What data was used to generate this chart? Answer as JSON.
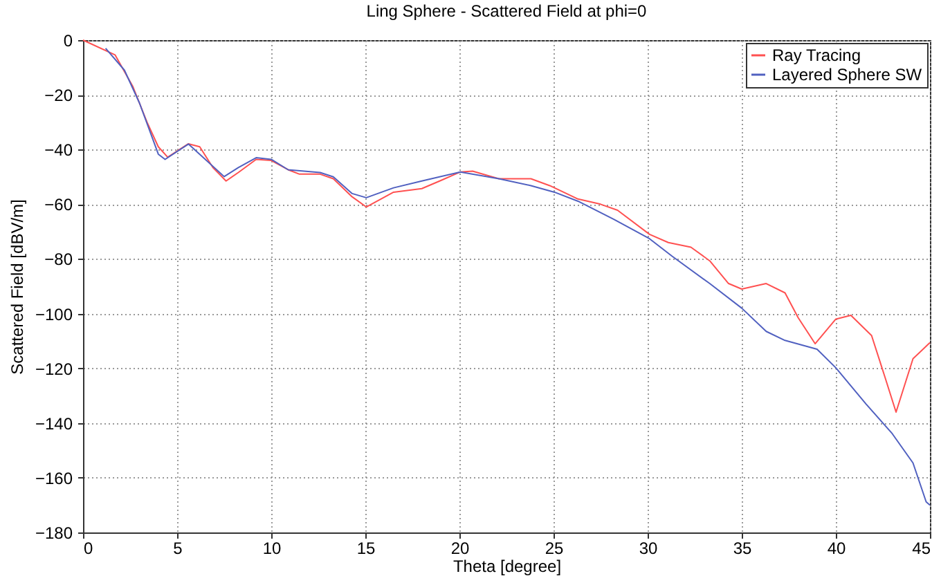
{
  "chart_data": {
    "type": "line",
    "title": "Ling Sphere - Scattered Field at phi=0",
    "xlabel": "Theta [degree]",
    "ylabel": "Scattered Field [dBV/m]",
    "xlim": [
      0,
      45
    ],
    "ylim": [
      -180,
      0
    ],
    "xticks": [
      0,
      5,
      10,
      15,
      20,
      25,
      30,
      35,
      40,
      45
    ],
    "yticks": [
      -180,
      -160,
      -140,
      -120,
      -100,
      -80,
      -60,
      -40,
      -20,
      0
    ],
    "grid": true,
    "legend": "top right",
    "marker": "none",
    "line_style": "solid",
    "series": [
      {
        "name": "Ray Tracing",
        "color": "#ff5050",
        "x": [
          0,
          1.7,
          2.65,
          3.4,
          4,
          4.5,
          5.6,
          6.2,
          6.9,
          7.6,
          8.25,
          9.2,
          10,
          10.9,
          11.5,
          12.6,
          13.3,
          14.3,
          15.05,
          16.5,
          18,
          18.95,
          20.05,
          20.7,
          22.1,
          23.8,
          24.8,
          26.3,
          27.5,
          28.4,
          30.1,
          31.1,
          32.3,
          33.3,
          34.3,
          35,
          36.3,
          37.3,
          38,
          38.9,
          40,
          40.8,
          41.9,
          42.6,
          43.2,
          44.1,
          45
        ],
        "values": [
          0,
          -5.4,
          -17,
          -30,
          -39,
          -42.8,
          -37.9,
          -39,
          -46.6,
          -51.5,
          -48.4,
          -43.6,
          -44,
          -47.4,
          -49,
          -49,
          -50.7,
          -57.3,
          -61,
          -55.6,
          -54.3,
          -51.5,
          -48.2,
          -47.9,
          -50.7,
          -50.7,
          -53.2,
          -58.1,
          -60,
          -62.2,
          -71,
          -74,
          -75.7,
          -80.7,
          -89,
          -91,
          -89,
          -92.4,
          -101.5,
          -111,
          -102,
          -100.6,
          -108,
          -123,
          -136,
          -116.5,
          -110.6
        ]
      },
      {
        "name": "Layered Sphere SW",
        "color": "#5060c0",
        "x": [
          1.2,
          2.2,
          3,
          4,
          4.36,
          5.6,
          7.5,
          8.25,
          9.2,
          10,
          10.9,
          12.6,
          13.3,
          14.3,
          15.05,
          16.5,
          18,
          20.05,
          22.1,
          23.8,
          25.05,
          26.3,
          28.2,
          30.1,
          31.3,
          33.3,
          35,
          36.3,
          37.3,
          39,
          40,
          41.6,
          43,
          44.1,
          44.8,
          45
        ],
        "values": [
          -3,
          -11,
          -23,
          -41.7,
          -43.6,
          -38,
          -49.9,
          -46.6,
          -43,
          -43.6,
          -47.4,
          -48.4,
          -50,
          -56.1,
          -57.6,
          -54,
          -51.5,
          -48.2,
          -50.7,
          -53.2,
          -55.6,
          -58.9,
          -65.5,
          -72.6,
          -79,
          -89,
          -98,
          -106.5,
          -109.8,
          -113,
          -119.8,
          -133,
          -143.9,
          -154.6,
          -168.8,
          -170
        ]
      }
    ]
  }
}
